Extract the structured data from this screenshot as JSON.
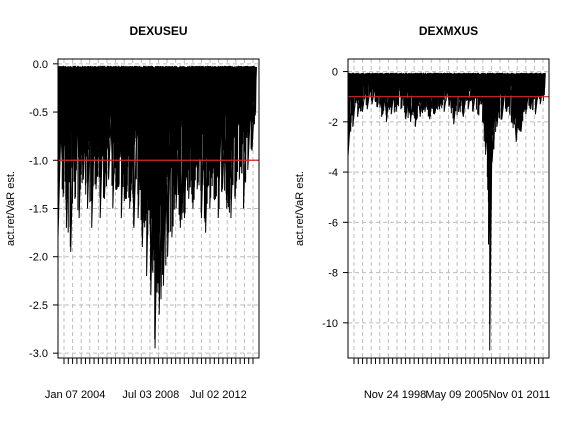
{
  "chart_data": [
    {
      "type": "line",
      "title": "DEXUSEU",
      "ylabel": "act.ret/VaR est.",
      "xlabel": "",
      "ylim": [
        -3.05,
        0.05
      ],
      "yticks": [
        "0.0",
        "-0.5",
        "-1.0",
        "-1.5",
        "-2.0",
        "-2.5",
        "-3.0"
      ],
      "ytick_values": [
        0.0,
        -0.5,
        -1.0,
        -1.5,
        -2.0,
        -2.5,
        -3.0
      ],
      "xtick_labels": [
        "Jan 07 2004",
        "Jul 03 2008",
        "Jul 02 2012"
      ],
      "x_range": [
        "2003-01",
        "2014-12"
      ],
      "xtick_positions": [
        "2004-01-07",
        "2008-07-03",
        "2012-07-02"
      ],
      "reference_line": {
        "y": -1.0,
        "color": "#d62728"
      },
      "grid": true,
      "line_color": "#000000",
      "series": [
        {
          "x": [
            "2003-01",
            "2003-04",
            "2003-07",
            "2003-10",
            "2004-01",
            "2004-04",
            "2004-07",
            "2004-10",
            "2005-01",
            "2005-04",
            "2005-07",
            "2005-10",
            "2006-01",
            "2006-04",
            "2006-07",
            "2006-10",
            "2007-01",
            "2007-04",
            "2007-07",
            "2007-10",
            "2008-01",
            "2008-04",
            "2008-07",
            "2008-10",
            "2009-01",
            "2009-04",
            "2009-07",
            "2009-10",
            "2010-01",
            "2010-04",
            "2010-07",
            "2010-10",
            "2011-01",
            "2011-04",
            "2011-07",
            "2011-10",
            "2012-01",
            "2012-04",
            "2012-07",
            "2012-10",
            "2013-01",
            "2013-04",
            "2013-07",
            "2013-10",
            "2014-01",
            "2014-04",
            "2014-07",
            "2014-10"
          ],
          "values": [
            -1.8,
            -1.3,
            -1.7,
            -1.95,
            -1.4,
            -1.6,
            -1.2,
            -1.5,
            -1.7,
            -1.3,
            -1.6,
            -1.4,
            -1.2,
            -1.5,
            -1.3,
            -1.6,
            -1.4,
            -1.5,
            -1.7,
            -1.6,
            -1.9,
            -2.2,
            -2.4,
            -2.95,
            -2.6,
            -2.3,
            -2.0,
            -1.8,
            -1.5,
            -1.7,
            -1.6,
            -1.4,
            -1.5,
            -1.3,
            -1.6,
            -1.75,
            -1.5,
            -1.4,
            -1.6,
            -1.3,
            -1.5,
            -1.6,
            -1.4,
            -1.2,
            -1.5,
            -1.1,
            -0.9,
            -0.8
          ]
        }
      ]
    },
    {
      "type": "line",
      "title": "DEXMXUS",
      "ylabel": "act.ret/VaR est.",
      "xlabel": "",
      "ylim": [
        -11.4,
        0.5
      ],
      "yticks": [
        "0",
        "-2",
        "-4",
        "-6",
        "-8",
        "-10"
      ],
      "ytick_values": [
        0,
        -2,
        -4,
        -6,
        -8,
        -10
      ],
      "xtick_labels": [
        "Nov 24 1998",
        "May 09 2005",
        "Nov 01 2011"
      ],
      "x_range": [
        "1994-01",
        "2014-12"
      ],
      "xtick_positions": [
        "1998-11-24",
        "2005-05-09",
        "2011-11-01"
      ],
      "reference_line": {
        "y": -1.0,
        "color": "#d62728"
      },
      "grid": true,
      "line_color": "#000000",
      "series": [
        {
          "x": [
            "1994-01",
            "1994-07",
            "1995-01",
            "1995-07",
            "1996-01",
            "1996-07",
            "1997-01",
            "1997-07",
            "1998-01",
            "1998-07",
            "1999-01",
            "1999-07",
            "2000-01",
            "2000-07",
            "2001-01",
            "2001-07",
            "2002-01",
            "2002-07",
            "2003-01",
            "2003-07",
            "2004-01",
            "2004-07",
            "2005-01",
            "2005-07",
            "2006-01",
            "2006-07",
            "2007-01",
            "2007-07",
            "2008-01",
            "2008-07",
            "2008-10",
            "2009-01",
            "2009-07",
            "2010-01",
            "2010-07",
            "2011-01",
            "2011-07",
            "2012-01",
            "2012-07",
            "2013-01",
            "2013-07",
            "2014-01",
            "2014-07"
          ],
          "values": [
            -3.4,
            -2.2,
            -1.8,
            -1.6,
            -1.5,
            -1.3,
            -1.4,
            -1.8,
            -2.0,
            -1.7,
            -1.6,
            -1.5,
            -1.9,
            -2.0,
            -2.2,
            -1.8,
            -1.6,
            -1.9,
            -1.7,
            -1.5,
            -1.6,
            -1.4,
            -2.1,
            -1.6,
            -1.8,
            -1.5,
            -1.6,
            -1.7,
            -2.0,
            -4.2,
            -11.1,
            -3.6,
            -2.2,
            -1.9,
            -1.6,
            -2.0,
            -2.8,
            -2.4,
            -1.7,
            -1.5,
            -1.7,
            -1.3,
            -1.2
          ]
        }
      ]
    }
  ]
}
